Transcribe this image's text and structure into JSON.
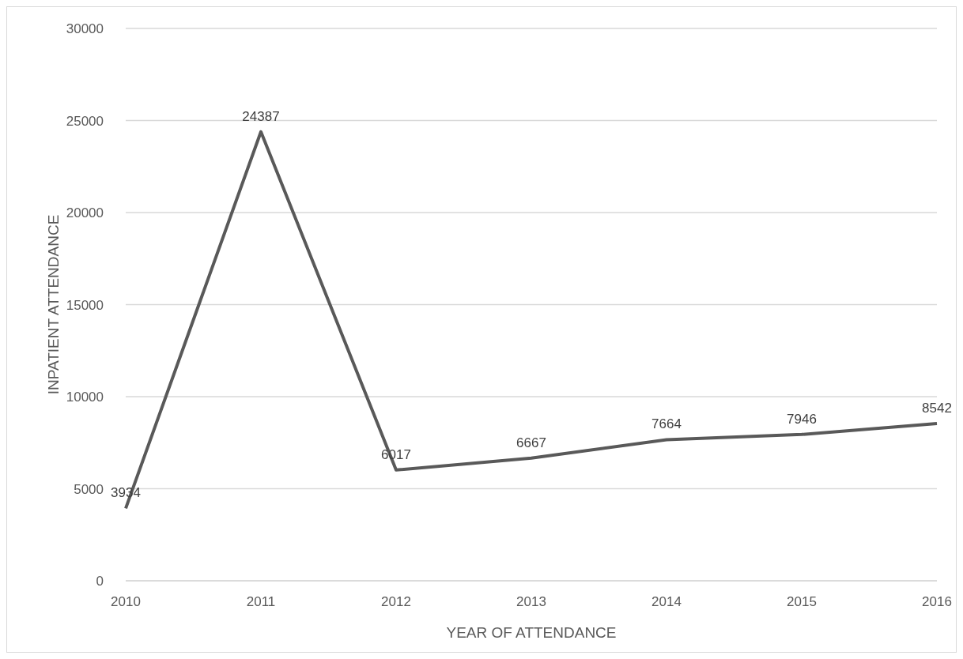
{
  "chart_data": {
    "type": "line",
    "xlabel": "YEAR OF ATTENDANCE",
    "ylabel": "INPATIENT ATTENDANCE",
    "categories": [
      "2010",
      "2011",
      "2012",
      "2013",
      "2014",
      "2015",
      "2016"
    ],
    "values": [
      3934,
      24387,
      6017,
      6667,
      7664,
      7946,
      8542
    ],
    "color": "#595959",
    "ylim": [
      0,
      30000
    ],
    "yticks": [
      0,
      5000,
      10000,
      15000,
      20000,
      25000,
      30000
    ],
    "grid": "y",
    "data_labels": true
  }
}
